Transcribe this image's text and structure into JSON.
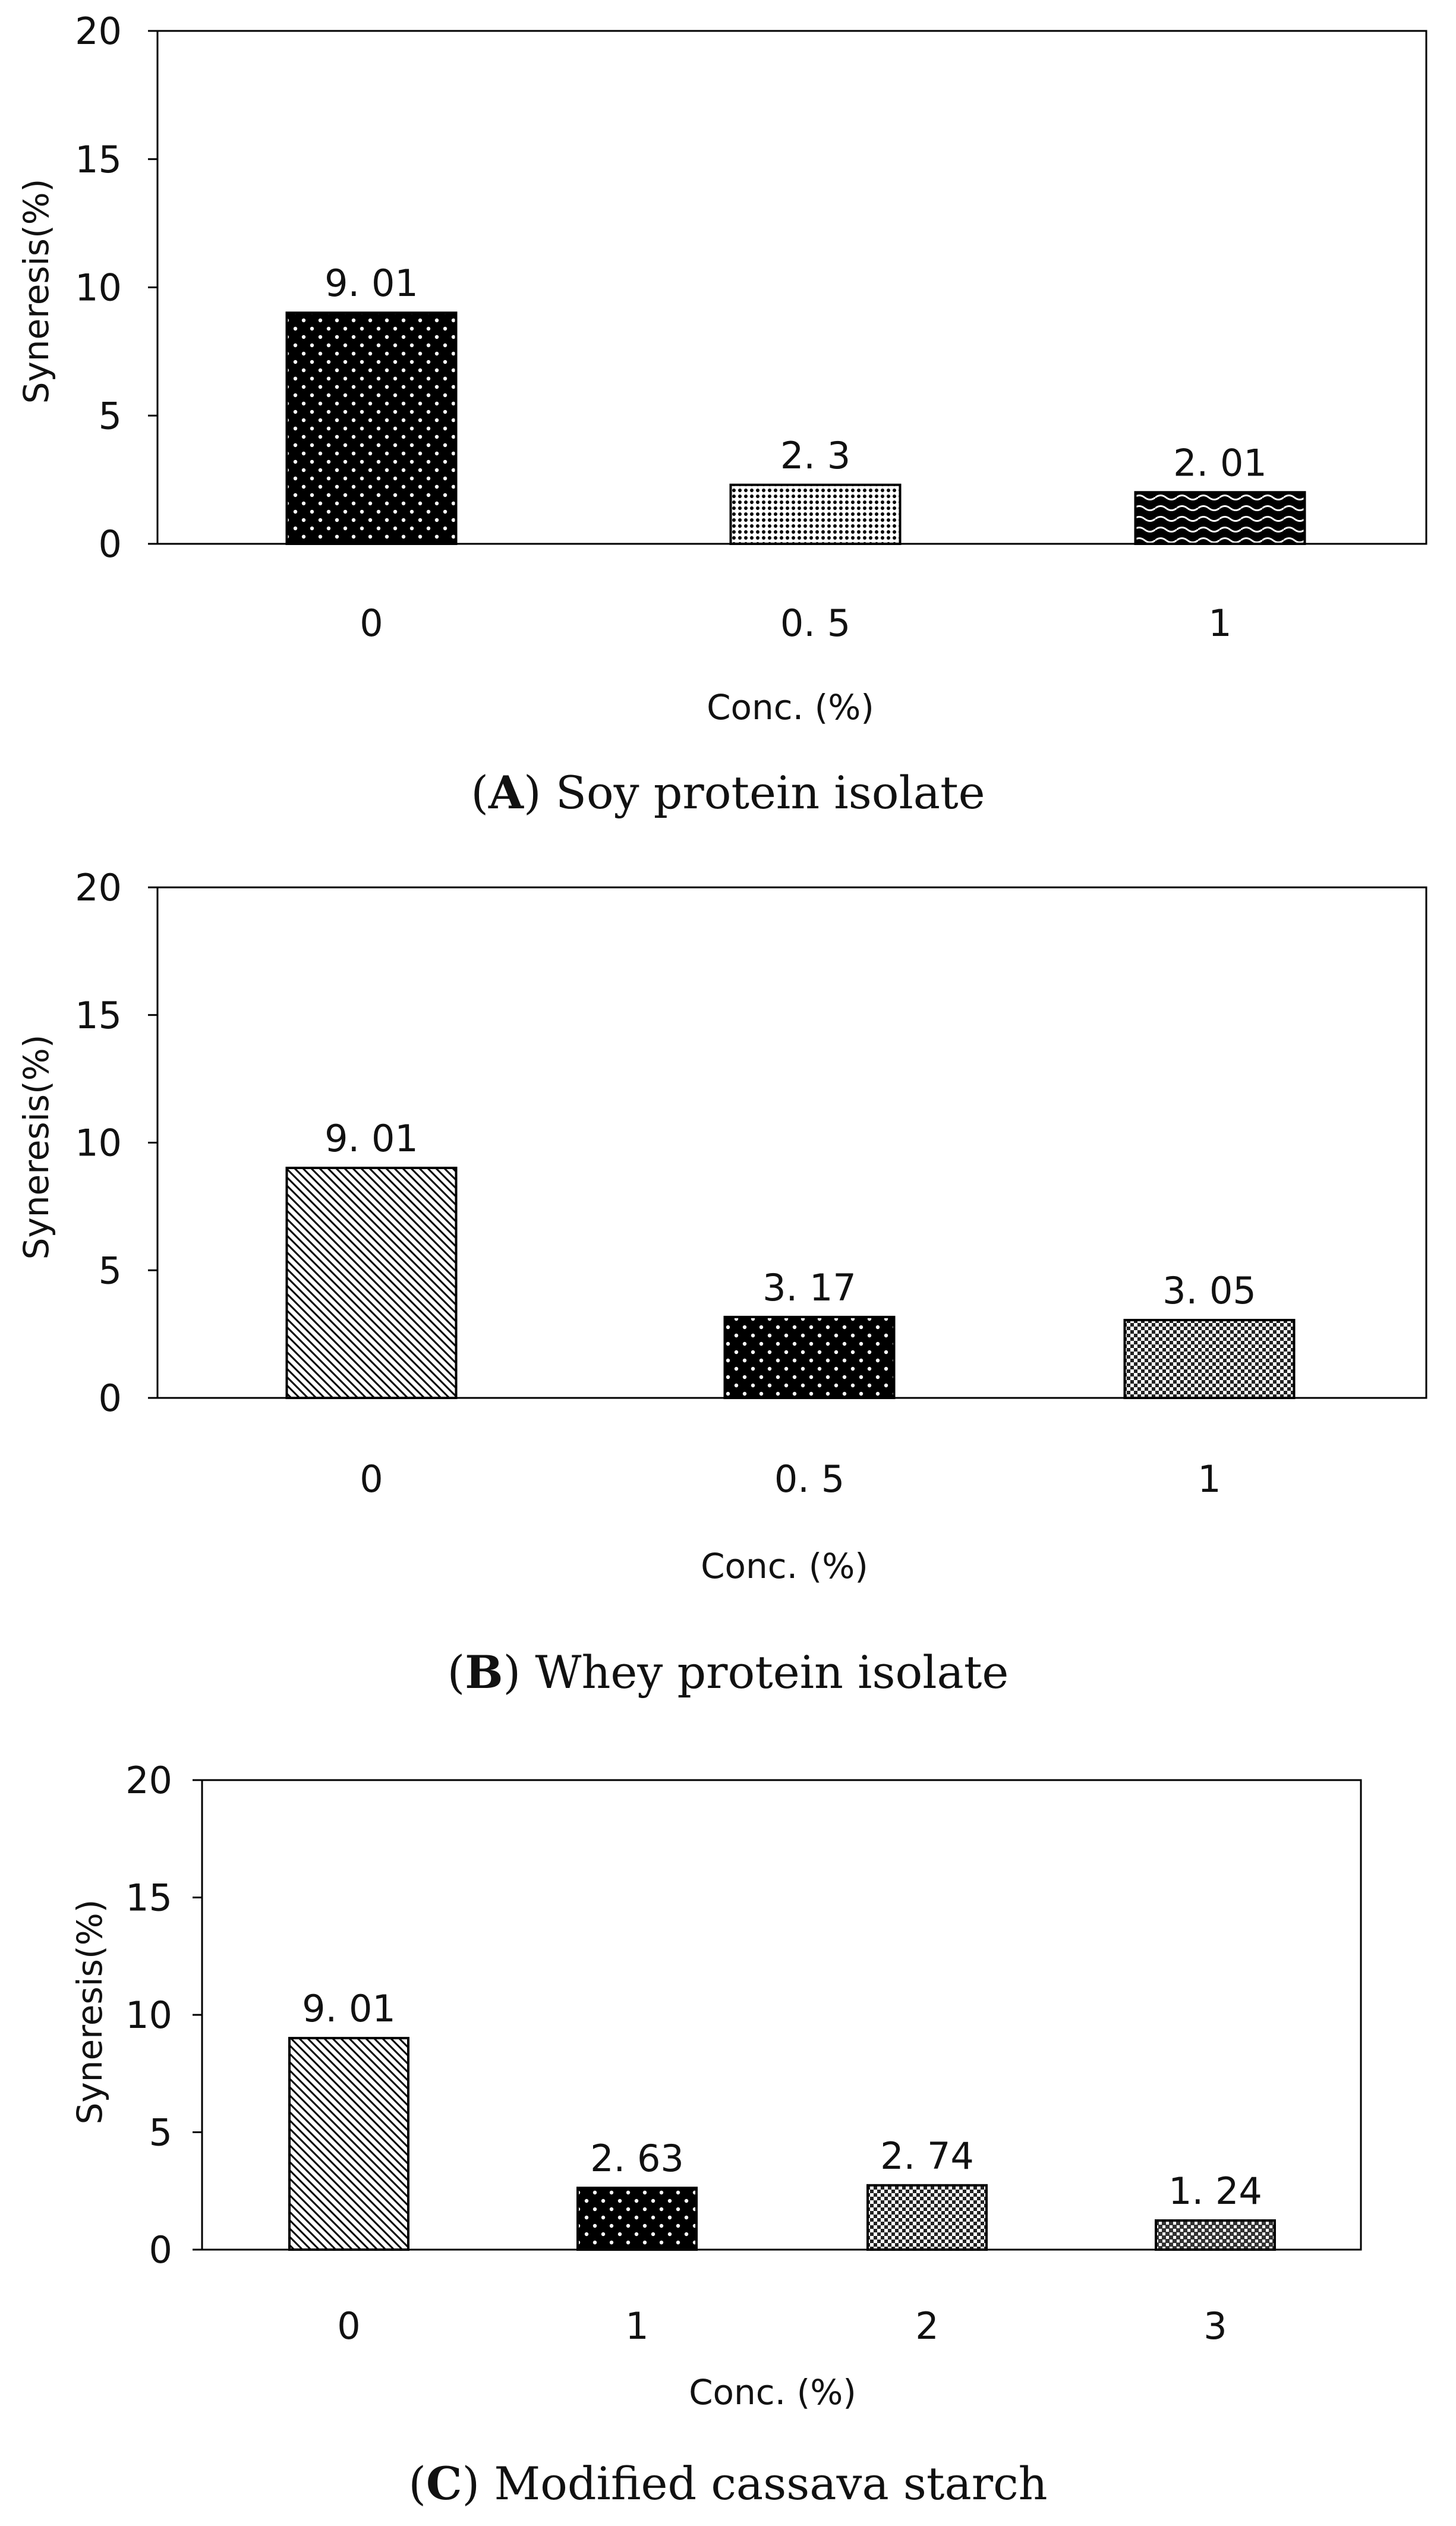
{
  "chart_data": [
    {
      "type": "bar",
      "panel_letter": "A",
      "caption_text": "Soy protein isolate",
      "categories": [
        "0",
        "0. 5",
        "1"
      ],
      "values": [
        9.01,
        2.3,
        2.01
      ],
      "value_labels": [
        "9. 01",
        "2. 3",
        "2. 01"
      ],
      "patterns": [
        "dots-dark",
        "fine-grid",
        "waves"
      ],
      "xlabel": "Conc. (%)",
      "ylabel": "Syneresis(%)",
      "ylim": [
        0,
        20
      ],
      "yticks": [
        "0",
        "5",
        "10",
        "15",
        "20"
      ],
      "grid": false
    },
    {
      "type": "bar",
      "panel_letter": "B",
      "caption_text": "Whey protein isolate",
      "categories": [
        "0",
        "0. 5",
        "1"
      ],
      "values": [
        9.01,
        3.17,
        3.05
      ],
      "value_labels": [
        "9. 01",
        "3. 17",
        "3. 05"
      ],
      "patterns": [
        "diagonal",
        "dots-dark",
        "checker"
      ],
      "xlabel": "Conc. (%)",
      "ylabel": "Syneresis(%)",
      "ylim": [
        0,
        20
      ],
      "yticks": [
        "0",
        "5",
        "10",
        "15",
        "20"
      ],
      "grid": false
    },
    {
      "type": "bar",
      "panel_letter": "C",
      "caption_text": "Modified cassava starch",
      "categories": [
        "0",
        "1",
        "2",
        "3"
      ],
      "values": [
        9.01,
        2.63,
        2.74,
        1.24
      ],
      "value_labels": [
        "9. 01",
        "2. 63",
        "2. 74",
        "1. 24"
      ],
      "patterns": [
        "diagonal",
        "dots-dark",
        "checker",
        "checker-dark"
      ],
      "xlabel": "Conc. (%)",
      "ylabel": "Syneresis(%)",
      "ylim": [
        0,
        20
      ],
      "yticks": [
        "0",
        "5",
        "10",
        "15",
        "20"
      ],
      "grid": false
    }
  ]
}
